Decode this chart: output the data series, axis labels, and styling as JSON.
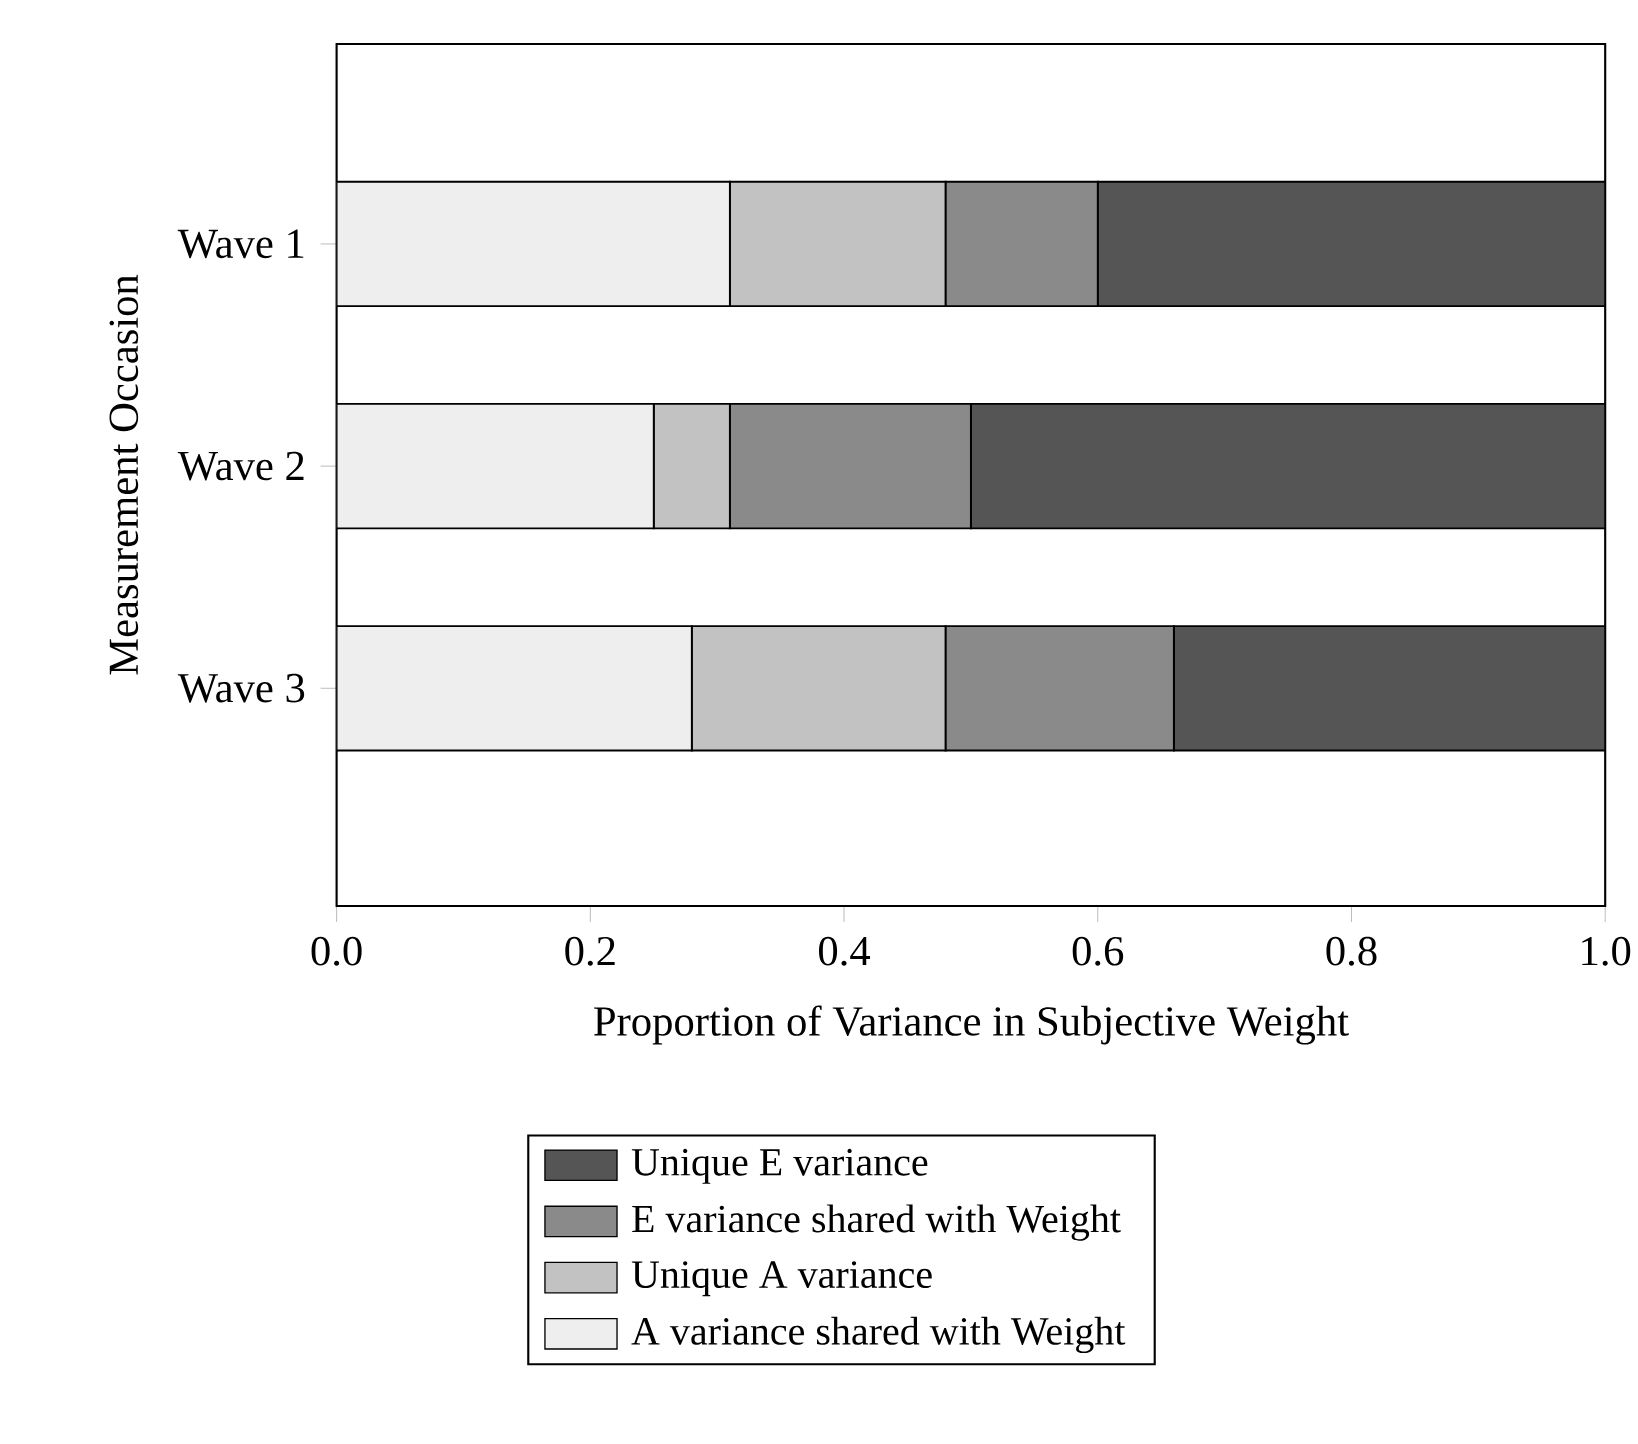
{
  "chart_data": {
    "type": "bar",
    "orientation": "horizontal",
    "stacked": true,
    "categories": [
      "Wave 1",
      "Wave 2",
      "Wave 3"
    ],
    "series": [
      {
        "name": "A variance shared with Weight",
        "color": "#eeeeee",
        "values": [
          0.31,
          0.25,
          0.28
        ]
      },
      {
        "name": "Unique A variance",
        "color": "#c2c2c2",
        "values": [
          0.17,
          0.06,
          0.2
        ]
      },
      {
        "name": "E variance shared with Weight",
        "color": "#8a8a8a",
        "values": [
          0.12,
          0.19,
          0.18
        ]
      },
      {
        "name": "Unique E variance",
        "color": "#555555",
        "values": [
          0.4,
          0.5,
          0.34
        ]
      }
    ],
    "xlim": [
      0,
      1
    ],
    "xticks": [
      {
        "value": 0,
        "label": "0.0"
      },
      0.2,
      0.4,
      0.6,
      0.8,
      {
        "value": 1,
        "label": "1.0"
      }
    ],
    "xlabel": "Proportion of Variance in Subjective Weight",
    "ylabel": "Measurement Occasion",
    "legend": "bottom"
  }
}
